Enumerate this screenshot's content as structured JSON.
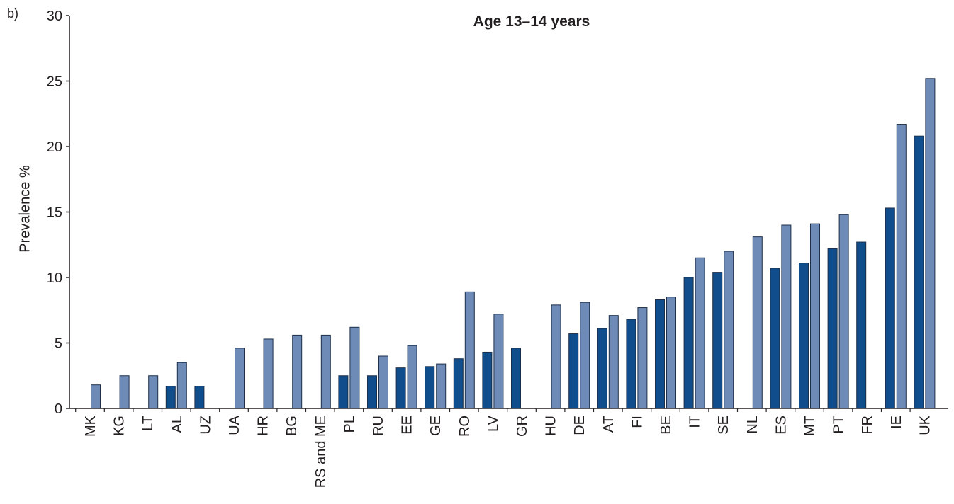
{
  "panel_label": "b)",
  "chart_data": {
    "type": "bar",
    "title": "Age 13–14 years",
    "xlabel": "",
    "ylabel": "Prevalence %",
    "ylim": [
      0,
      30
    ],
    "yticks": [
      0,
      5,
      10,
      15,
      20,
      25,
      30
    ],
    "grid": false,
    "legend": "none",
    "categories": [
      "MK",
      "KG",
      "LT",
      "AL",
      "UZ",
      "UA",
      "HR",
      "BG",
      "RS and ME",
      "PL",
      "RU",
      "EE",
      "GE",
      "RO",
      "LV",
      "GR",
      "HU",
      "DE",
      "AT",
      "FI",
      "BE",
      "IT",
      "SE",
      "NL",
      "ES",
      "MT",
      "PT",
      "FR",
      "IE",
      "UK"
    ],
    "series": [
      {
        "color": "#0f4d8c",
        "values": [
          null,
          null,
          null,
          1.7,
          1.7,
          null,
          null,
          null,
          null,
          2.5,
          2.5,
          3.1,
          3.2,
          3.8,
          4.3,
          4.6,
          null,
          5.7,
          6.1,
          6.8,
          8.3,
          10.0,
          10.4,
          null,
          10.7,
          11.1,
          12.2,
          12.7,
          15.3,
          20.8
        ]
      },
      {
        "color": "#6e8bb8",
        "values": [
          1.8,
          2.5,
          2.5,
          3.5,
          null,
          4.6,
          5.3,
          5.6,
          5.6,
          6.2,
          4.0,
          4.8,
          3.4,
          8.9,
          7.2,
          null,
          7.9,
          8.1,
          7.1,
          7.7,
          8.5,
          11.5,
          12.0,
          13.1,
          14.0,
          14.1,
          14.8,
          null,
          21.7,
          25.2
        ]
      }
    ]
  }
}
